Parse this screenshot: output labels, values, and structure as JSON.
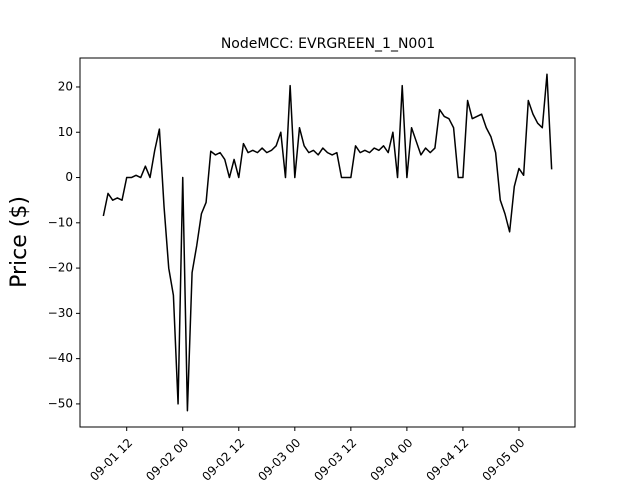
{
  "chart_data": {
    "type": "line",
    "title": "NodeMCC: EVRGREEN_1_N001",
    "y_label": "Price ($)",
    "x": [
      "09-01 07",
      "09-01 08",
      "09-01 09",
      "09-01 10",
      "09-01 11",
      "09-01 12",
      "09-01 13",
      "09-01 14",
      "09-01 15",
      "09-01 16",
      "09-01 17",
      "09-01 18",
      "09-01 19",
      "09-01 20",
      "09-01 21",
      "09-01 22",
      "09-01 23",
      "09-02 00",
      "09-02 01",
      "09-02 02",
      "09-02 03",
      "09-02 04",
      "09-02 05",
      "09-02 06",
      "09-02 07",
      "09-02 08",
      "09-02 09",
      "09-02 10",
      "09-02 11",
      "09-02 12",
      "09-02 13",
      "09-02 14",
      "09-02 15",
      "09-02 16",
      "09-02 17",
      "09-02 18",
      "09-02 19",
      "09-02 20",
      "09-02 21",
      "09-02 22",
      "09-02 23",
      "09-03 00",
      "09-03 01",
      "09-03 02",
      "09-03 03",
      "09-03 04",
      "09-03 05",
      "09-03 06",
      "09-03 07",
      "09-03 08",
      "09-03 09",
      "09-03 10",
      "09-03 11",
      "09-03 12",
      "09-03 13",
      "09-03 14",
      "09-03 15",
      "09-03 16",
      "09-03 17",
      "09-03 18",
      "09-03 19",
      "09-03 20",
      "09-03 21",
      "09-03 22",
      "09-03 23",
      "09-04 00",
      "09-04 01",
      "09-04 02",
      "09-04 03",
      "09-04 04",
      "09-04 05",
      "09-04 06",
      "09-04 07",
      "09-04 08",
      "09-04 09",
      "09-04 10",
      "09-04 11",
      "09-04 12",
      "09-04 13",
      "09-04 14",
      "09-04 15",
      "09-04 16",
      "09-04 17",
      "09-04 18",
      "09-04 19",
      "09-04 20",
      "09-04 21",
      "09-04 22",
      "09-04 23",
      "09-05 00",
      "09-05 01",
      "09-05 02",
      "09-05 03",
      "09-05 04",
      "09-05 05",
      "09-05 06",
      "09-05 07"
    ],
    "series": [
      {
        "color": "#000000",
        "values": [
          -8.5,
          -3.5,
          -5,
          -4.5,
          -5,
          0,
          0,
          0.5,
          0,
          2.5,
          0,
          6,
          10.7,
          -6.5,
          -20,
          -26,
          -50,
          0,
          -51.5,
          -21,
          -15,
          -8,
          -5.5,
          5.8,
          5,
          5.5,
          4,
          0,
          4,
          0,
          7.5,
          5.5,
          6,
          5.5,
          6.5,
          5.5,
          6,
          7,
          10,
          0,
          20.3,
          0,
          11,
          7,
          5.5,
          6,
          5,
          6.5,
          5.5,
          5,
          5.5,
          0,
          0,
          0,
          7,
          5.5,
          6,
          5.5,
          6.5,
          6,
          7,
          5.5,
          10,
          0,
          20.3,
          0,
          11,
          8,
          5,
          6.5,
          5.5,
          6.5,
          15,
          13.5,
          13,
          11,
          0,
          0,
          17,
          13,
          13.5,
          14,
          11,
          9,
          5.5,
          -5,
          -8,
          -12,
          -2,
          2,
          0.5,
          17,
          14,
          12,
          11,
          22.8,
          1.8
        ]
      }
    ],
    "xlim": [
      "09-01 02",
      "09-05 12"
    ],
    "xticks": [
      "09-01 12",
      "09-02 00",
      "09-02 12",
      "09-03 00",
      "09-03 12",
      "09-04 00",
      "09-04 12",
      "09-05 00"
    ],
    "ylim": [
      -55.1,
      26.4
    ],
    "yticks": [
      {
        "value": -50,
        "label": "−50"
      },
      {
        "value": -40,
        "label": "−40"
      },
      {
        "value": -30,
        "label": "−30"
      },
      {
        "value": -20,
        "label": "−20"
      },
      {
        "value": -10,
        "label": "−10"
      },
      0,
      10,
      20
    ]
  }
}
